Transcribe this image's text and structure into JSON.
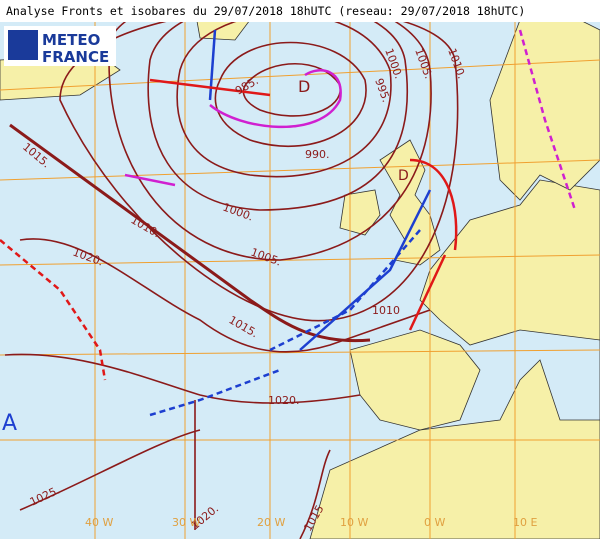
{
  "header": {
    "title": "Analyse Fronts et isobares du 29/07/2018 18hUTC (reseau: 29/07/2018 18hUTC)"
  },
  "logo": {
    "line1": "METEO",
    "line2": "FRANCE"
  },
  "isobar_labels": [
    "985.",
    "990.",
    "995.",
    "1000.",
    "1005.",
    "1010.",
    "1015.",
    "1010.",
    "1000.",
    "1005.",
    "1020.",
    "1015.",
    "1010",
    "1020.",
    "1025.",
    "1020.",
    "1015"
  ],
  "grid_labels": [
    "40 W",
    "30 W",
    "20 W",
    "10 W",
    "0 W",
    "10 E"
  ],
  "centers": [
    "D",
    "D",
    "A"
  ]
}
